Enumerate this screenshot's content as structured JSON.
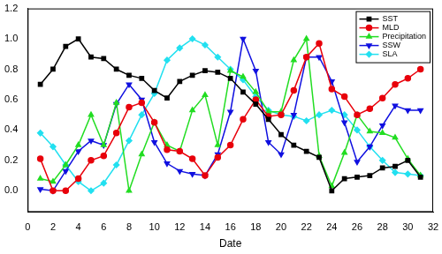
{
  "chart_data": {
    "type": "line",
    "x_label": "Date",
    "x": [
      1,
      2,
      3,
      4,
      5,
      6,
      7,
      8,
      9,
      10,
      11,
      12,
      13,
      14,
      15,
      16,
      17,
      18,
      19,
      20,
      21,
      22,
      23,
      24,
      25,
      26,
      27,
      28,
      29,
      30,
      31
    ],
    "xlim": [
      0,
      32
    ],
    "xticks": [
      0,
      2,
      4,
      6,
      8,
      10,
      12,
      14,
      16,
      18,
      20,
      22,
      24,
      26,
      28,
      30,
      32
    ],
    "ylim": [
      -0.14,
      1.2
    ],
    "yticks": [
      {
        "value": 0,
        "label": "0.0"
      },
      0.2,
      0.4,
      0.6,
      0.8,
      {
        "value": 1,
        "label": "1.0"
      },
      1.2
    ],
    "grid": false,
    "legend": "top-right",
    "series": [
      {
        "name": "SST",
        "color": "#000000",
        "marker": "square",
        "values": [
          0.7,
          0.8,
          0.95,
          1.0,
          0.88,
          0.87,
          0.8,
          0.76,
          0.74,
          0.66,
          0.61,
          0.72,
          0.76,
          0.79,
          0.78,
          0.74,
          0.65,
          0.57,
          0.47,
          0.37,
          0.3,
          0.26,
          0.22,
          0.0,
          0.08,
          0.09,
          0.1,
          0.15,
          0.16,
          0.2,
          0.09
        ]
      },
      {
        "name": "MLD",
        "color": "#e8000b",
        "marker": "circle",
        "values": [
          0.21,
          0.0,
          0.0,
          0.08,
          0.2,
          0.23,
          0.38,
          0.55,
          0.58,
          0.45,
          0.27,
          0.26,
          0.21,
          0.1,
          0.22,
          0.3,
          0.47,
          0.6,
          0.49,
          0.5,
          0.66,
          0.88,
          0.97,
          0.67,
          0.62,
          0.5,
          0.54,
          0.61,
          0.7,
          0.74,
          0.8
        ]
      },
      {
        "name": "Precipitation",
        "color": "#22dd22",
        "marker": "triangle",
        "values": [
          0.08,
          0.06,
          0.17,
          0.3,
          0.5,
          0.3,
          0.58,
          0.0,
          0.24,
          0.45,
          0.3,
          0.26,
          0.53,
          0.63,
          0.3,
          0.79,
          0.75,
          0.65,
          0.52,
          0.52,
          0.86,
          1.0,
          0.23,
          0.03,
          0.25,
          0.5,
          0.39,
          0.38,
          0.35,
          0.21,
          0.1
        ]
      },
      {
        "name": "SSW",
        "color": "#1010e0",
        "marker": "triangle-down",
        "values": [
          0.01,
          0.0,
          0.13,
          0.26,
          0.33,
          0.3,
          0.57,
          0.7,
          0.6,
          0.32,
          0.18,
          0.13,
          0.11,
          0.1,
          0.24,
          0.52,
          1.0,
          0.79,
          0.32,
          0.24,
          0.5,
          0.88,
          0.88,
          0.72,
          0.45,
          0.19,
          0.29,
          0.43,
          0.56,
          0.53,
          0.53
        ]
      },
      {
        "name": "SLA",
        "color": "#22e0f0",
        "marker": "diamond",
        "values": [
          0.38,
          0.29,
          0.17,
          0.06,
          0.0,
          0.05,
          0.17,
          0.33,
          0.5,
          0.64,
          0.86,
          0.94,
          1.0,
          0.96,
          0.88,
          0.8,
          0.73,
          0.62,
          0.53,
          0.5,
          0.49,
          0.46,
          0.5,
          0.53,
          0.5,
          0.4,
          0.29,
          0.2,
          0.12,
          0.11,
          0.1
        ]
      }
    ]
  }
}
